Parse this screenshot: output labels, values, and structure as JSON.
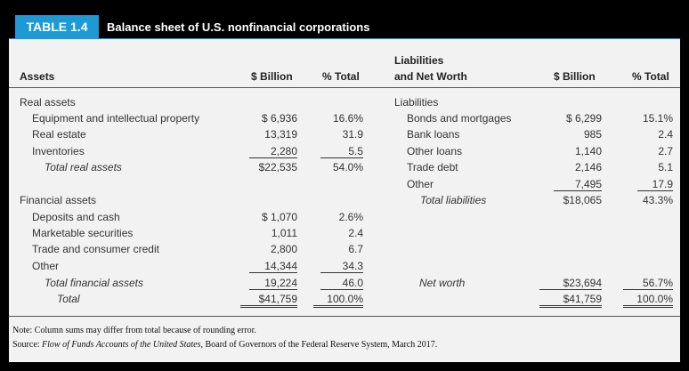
{
  "table": {
    "number": "TABLE 1.4",
    "title": "Balance sheet of U.S. nonfinancial corporations"
  },
  "headers": {
    "assets": "Assets",
    "billion": "$ Billion",
    "pct": "% Total",
    "liab_line1": "Liabilities",
    "liab_line2": "and Net Worth",
    "billion2": "$ Billion",
    "pct2": "% Total"
  },
  "assets": [
    {
      "label": "Real assets",
      "billion": "",
      "pct": ""
    },
    {
      "label": "Equipment and intellectual property",
      "billion": "$ 6,936",
      "pct": "16.6%"
    },
    {
      "label": "Real estate",
      "billion": "13,319",
      "pct": "31.9"
    },
    {
      "label": "Inventories",
      "billion": "2,280",
      "pct": "5.5"
    },
    {
      "label": "Total real assets",
      "billion": "$22,535",
      "pct": "54.0%"
    },
    {
      "label": "Financial assets",
      "billion": "",
      "pct": ""
    },
    {
      "label": "Deposits and cash",
      "billion": "$ 1,070",
      "pct": "2.6%"
    },
    {
      "label": "Marketable securities",
      "billion": "1,011",
      "pct": "2.4"
    },
    {
      "label": "Trade and consumer credit",
      "billion": "2,800",
      "pct": "6.7"
    },
    {
      "label": "Other",
      "billion": "14,344",
      "pct": "34.3"
    },
    {
      "label": "Total financial assets",
      "billion": "19,224",
      "pct": "46.0"
    },
    {
      "label": "Total",
      "billion": "$41,759",
      "pct": "100.0%"
    }
  ],
  "liabilities": [
    {
      "label": "Liabilities",
      "billion": "",
      "pct": ""
    },
    {
      "label": "Bonds and mortgages",
      "billion": "$ 6,299",
      "pct": "15.1%"
    },
    {
      "label": "Bank loans",
      "billion": "985",
      "pct": "2.4"
    },
    {
      "label": "Other loans",
      "billion": "1,140",
      "pct": "2.7"
    },
    {
      "label": "Trade debt",
      "billion": "2,146",
      "pct": "5.1"
    },
    {
      "label": "Other",
      "billion": "7,495",
      "pct": "17.9"
    },
    {
      "label": "Total liabilities",
      "billion": "$18,065",
      "pct": "43.3%"
    },
    {
      "label": "Net worth",
      "billion": "$23,694",
      "pct": "56.7%"
    },
    {
      "label": "",
      "billion": "$41,759",
      "pct": "100.0%"
    }
  ],
  "notes": {
    "note": "Note: Column sums may differ from total because of rounding error.",
    "source_prefix": "Source: ",
    "source_title": "Flow of Funds Accounts of the United States,",
    "source_rest": " Board of Governors of the Federal Reserve System, March 2017."
  }
}
